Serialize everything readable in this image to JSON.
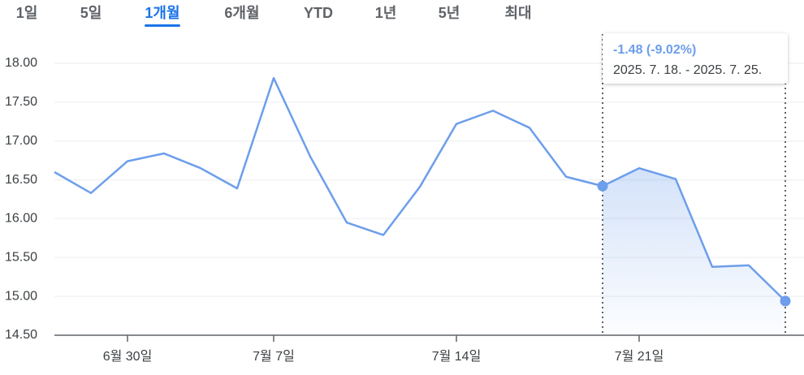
{
  "tabs": [
    {
      "label": "1일"
    },
    {
      "label": "5일"
    },
    {
      "label": "1개월",
      "selected": true
    },
    {
      "label": "6개월"
    },
    {
      "label": "YTD"
    },
    {
      "label": "1년"
    },
    {
      "label": "5년"
    },
    {
      "label": "최대"
    }
  ],
  "chart_data": {
    "type": "line",
    "categories": [
      null,
      null,
      "6월 30일",
      null,
      null,
      null,
      "7월 7일",
      null,
      null,
      null,
      null,
      "7월 14일",
      null,
      null,
      null,
      null,
      "7월 21일",
      null,
      null,
      null,
      null
    ],
    "values": [
      16.6,
      16.33,
      16.74,
      16.84,
      16.65,
      16.39,
      17.81,
      16.8,
      15.95,
      15.79,
      16.41,
      17.22,
      17.39,
      17.17,
      16.54,
      16.42,
      16.65,
      16.51,
      15.38,
      15.4,
      14.94
    ],
    "color": "#6d9eeb",
    "ylim": [
      14.5,
      18.0
    ],
    "yticks": [
      {
        "value": 14.5,
        "label": "14.50"
      },
      {
        "value": 15,
        "label": "15.00"
      },
      {
        "value": 15.5,
        "label": "15.50"
      },
      {
        "value": 16,
        "label": "16.00"
      },
      {
        "value": 16.5,
        "label": "16.50"
      },
      {
        "value": 17,
        "label": "17.00"
      },
      {
        "value": 17.5,
        "label": "17.50"
      },
      {
        "value": 18,
        "label": "18.00"
      }
    ],
    "grid": true,
    "highlight_range": [
      15,
      20
    ],
    "annotations": [
      "-1.48 (-9.02%)",
      "2025. 7. 18. - 2025. 7. 25."
    ]
  }
}
